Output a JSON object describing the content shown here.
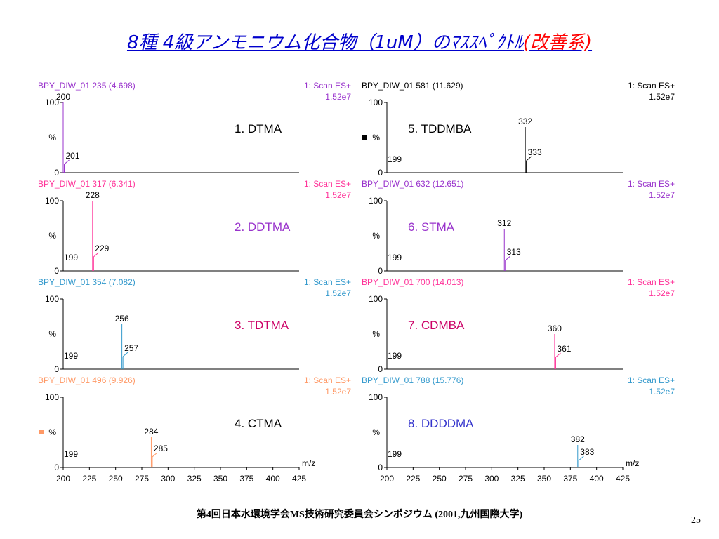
{
  "title": {
    "main": "8種 4級アンモニウム化合物（1uM）のﾏｽｽﾍﾟｸﾄﾙ",
    "suffix": "(改善系)"
  },
  "footer": {
    "text": "第4回日本水環境学会MS技術研究委員会シンポジウム (2001,九州国際大学)"
  },
  "page_number": "25",
  "chart_data": [
    {
      "type": "bar",
      "trace_label": "BPY_DIW_01 235 (4.698)",
      "scan_label": "1: Scan ES+",
      "intensity": "1.52e7",
      "compound": "1. DTMA",
      "color": "#9933cc",
      "compound_color": "#000000",
      "legend_marker": false,
      "xlim": [
        200,
        425
      ],
      "ylim": [
        0,
        100
      ],
      "y_label": "%",
      "show_x_axis": false,
      "xlabel": "",
      "peaks": [
        {
          "x": 200,
          "y": 100,
          "label": "200"
        },
        {
          "x": 201,
          "y": 12,
          "label": "201"
        }
      ]
    },
    {
      "type": "bar",
      "trace_label": "BPY_DIW_01 581 (11.629)",
      "scan_label": "1: Scan ES+",
      "intensity": "1.52e7",
      "compound": "5. TDDMBA",
      "color": "#000000",
      "compound_color": "#000000",
      "legend_marker": true,
      "xlim": [
        200,
        425
      ],
      "ylim": [
        0,
        100
      ],
      "y_label": "%",
      "show_x_axis": false,
      "xlabel": "",
      "peaks": [
        {
          "x": 199,
          "y": 0,
          "label": "199"
        },
        {
          "x": 332,
          "y": 65,
          "label": "332"
        },
        {
          "x": 333,
          "y": 17,
          "label": "333"
        }
      ]
    },
    {
      "type": "bar",
      "trace_label": "BPY_DIW_01 317 (6.341)",
      "scan_label": "1: Scan ES+",
      "intensity": "1.52e7",
      "compound": "2. DDTMA",
      "color": "#ff3399",
      "compound_color": "#9933cc",
      "legend_marker": false,
      "xlim": [
        200,
        425
      ],
      "ylim": [
        0,
        100
      ],
      "y_label": "%",
      "show_x_axis": false,
      "xlabel": "",
      "peaks": [
        {
          "x": 199,
          "y": 0,
          "label": "199"
        },
        {
          "x": 228,
          "y": 100,
          "label": "228"
        },
        {
          "x": 229,
          "y": 20,
          "label": "229"
        }
      ]
    },
    {
      "type": "bar",
      "trace_label": "BPY_DIW_01 632 (12.651)",
      "scan_label": "1: Scan ES+",
      "intensity": "1.52e7",
      "compound": "6. STMA",
      "color": "#9933cc",
      "compound_color": "#9933cc",
      "legend_marker": false,
      "xlim": [
        200,
        425
      ],
      "ylim": [
        0,
        100
      ],
      "y_label": "%",
      "show_x_axis": false,
      "xlabel": "",
      "peaks": [
        {
          "x": 199,
          "y": 0,
          "label": "199"
        },
        {
          "x": 312,
          "y": 60,
          "label": "312"
        },
        {
          "x": 313,
          "y": 15,
          "label": "313"
        }
      ]
    },
    {
      "type": "bar",
      "trace_label": "BPY_DIW_01 354 (7.082)",
      "scan_label": "1: Scan ES+",
      "intensity": "1.52e7",
      "compound": "3. TDTMA",
      "color": "#3399cc",
      "compound_color": "#cc0066",
      "legend_marker": false,
      "xlim": [
        200,
        425
      ],
      "ylim": [
        0,
        100
      ],
      "y_label": "%",
      "show_x_axis": false,
      "xlabel": "",
      "peaks": [
        {
          "x": 199,
          "y": 0,
          "label": "199"
        },
        {
          "x": 256,
          "y": 64,
          "label": "256"
        },
        {
          "x": 257,
          "y": 18,
          "label": "257"
        }
      ]
    },
    {
      "type": "bar",
      "trace_label": "BPY_DIW_01 700 (14.013)",
      "scan_label": "1: Scan ES+",
      "intensity": "1.52e7",
      "compound": "7. CDMBA",
      "color": "#ff3399",
      "compound_color": "#cc0066",
      "legend_marker": false,
      "xlim": [
        200,
        425
      ],
      "ylim": [
        0,
        100
      ],
      "y_label": "%",
      "show_x_axis": false,
      "xlabel": "",
      "peaks": [
        {
          "x": 199,
          "y": 0,
          "label": "199"
        },
        {
          "x": 360,
          "y": 50,
          "label": "360"
        },
        {
          "x": 361,
          "y": 17,
          "label": "361"
        }
      ]
    },
    {
      "type": "bar",
      "trace_label": "BPY_DIW_01 496 (9.926)",
      "scan_label": "1: Scan ES+",
      "intensity": "1.52e7",
      "compound": "4. CTMA",
      "color": "#ff9966",
      "compound_color": "#000000",
      "legend_marker": true,
      "xlim": [
        200,
        425
      ],
      "ylim": [
        0,
        100
      ],
      "y_label": "%",
      "show_x_axis": true,
      "xlabel": "m/z",
      "x_ticks": [
        200,
        225,
        250,
        275,
        300,
        325,
        350,
        375,
        400,
        425
      ],
      "peaks": [
        {
          "x": 199,
          "y": 0,
          "label": "199"
        },
        {
          "x": 284,
          "y": 43,
          "label": "284"
        },
        {
          "x": 285,
          "y": 15,
          "label": "285"
        }
      ]
    },
    {
      "type": "bar",
      "trace_label": "BPY_DIW_01 788 (15.776)",
      "scan_label": "1: Scan ES+",
      "intensity": "1.52e7",
      "compound": "8. DDDDMA",
      "color": "#3399cc",
      "compound_color": "#3333cc",
      "legend_marker": false,
      "xlim": [
        200,
        425
      ],
      "ylim": [
        0,
        100
      ],
      "y_label": "%",
      "show_x_axis": true,
      "xlabel": "m/z",
      "x_ticks": [
        200,
        225,
        250,
        275,
        300,
        325,
        350,
        375,
        400,
        425
      ],
      "peaks": [
        {
          "x": 199,
          "y": 0,
          "label": "199"
        },
        {
          "x": 382,
          "y": 32,
          "label": "382"
        },
        {
          "x": 383,
          "y": 10,
          "label": "383"
        }
      ]
    }
  ]
}
